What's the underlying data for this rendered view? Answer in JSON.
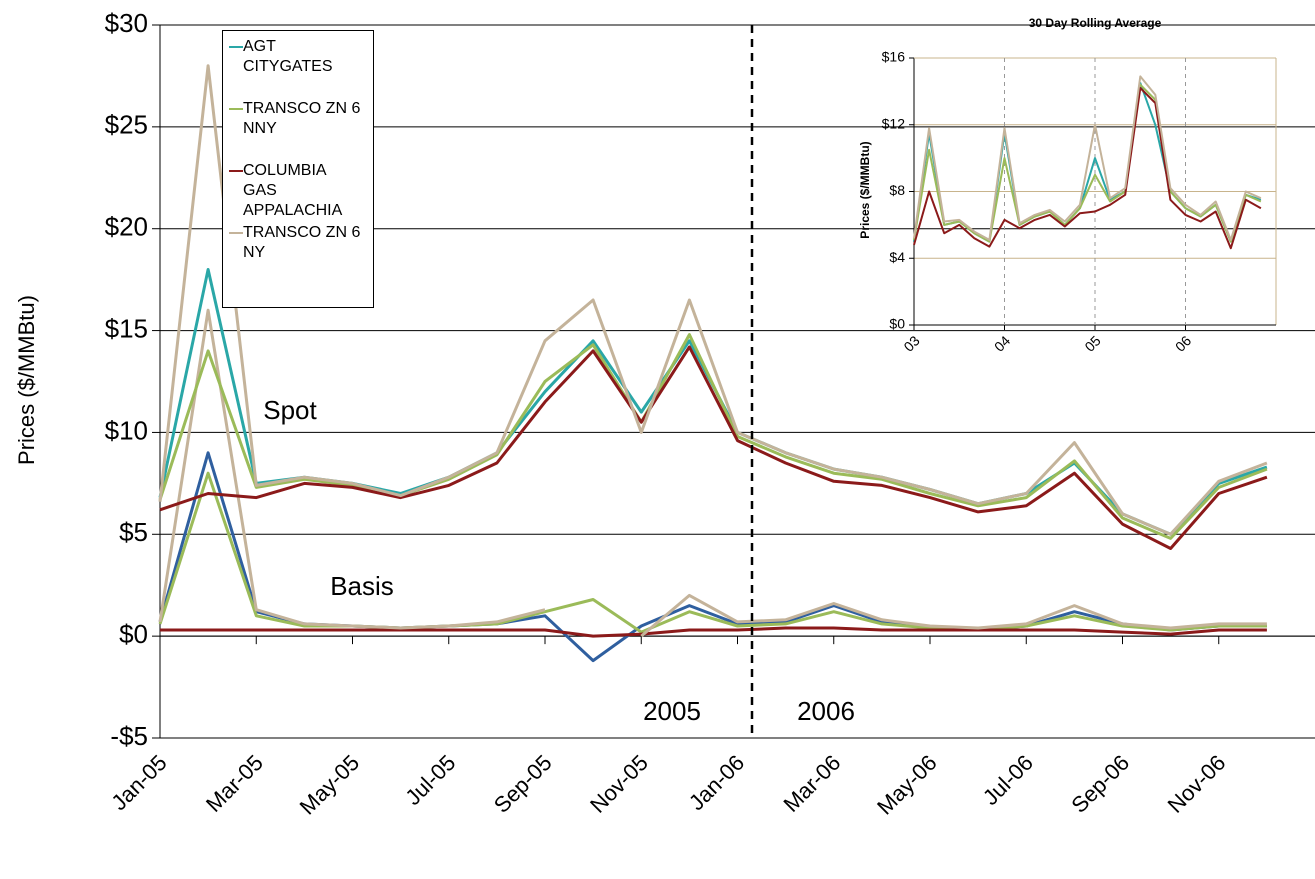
{
  "chart_data": [
    {
      "type": "line",
      "ylabel": "Prices ($/MMBtu)",
      "annotations": [
        "Spot",
        "Basis",
        "2005",
        "2006"
      ],
      "x": [
        "Jan-05",
        null,
        "Mar-05",
        null,
        "May-05",
        null,
        "Jul-05",
        null,
        "Sep-05",
        null,
        "Nov-05",
        null,
        "Jan-06",
        null,
        "Mar-06",
        null,
        "May-06",
        null,
        "Jul-06",
        null,
        "Sep-06",
        null,
        "Nov-06",
        null
      ],
      "ylim": [
        -5,
        30
      ],
      "yticks": [
        {
          "value": -5,
          "label": "-$5"
        },
        {
          "value": 0,
          "label": "$0"
        },
        {
          "value": 5,
          "label": "$5"
        },
        {
          "value": 10,
          "label": "$10"
        },
        {
          "value": 15,
          "label": "$15"
        },
        {
          "value": 20,
          "label": "$20"
        },
        {
          "value": 25,
          "label": "$25"
        },
        {
          "value": 30,
          "label": "$30"
        }
      ],
      "grid": true,
      "legend": "upper-left",
      "series": [
        {
          "name": "AGT CITYGATES",
          "color": "#2aa7a7",
          "values": [
            6.8,
            18,
            7.5,
            7.8,
            7.5,
            7.0,
            7.8,
            9.0,
            12,
            14.5,
            11,
            14.5,
            10,
            9,
            8.2,
            7.8,
            7.2,
            6.5,
            7,
            8.5,
            6,
            5,
            7.5,
            8.3
          ]
        },
        {
          "name": "TRANSCO ZN 6 NNY",
          "color": "#9bbb59",
          "values": [
            6.7,
            14,
            7.3,
            7.7,
            7.4,
            6.9,
            7.7,
            8.9,
            12.5,
            14.3,
            10.5,
            14.8,
            9.8,
            8.8,
            8,
            7.7,
            7,
            6.4,
            6.8,
            8.6,
            5.8,
            4.8,
            7.3,
            8.2
          ]
        },
        {
          "name": "COLUMBIA GAS APPALACHIA",
          "color": "#8b1a1a",
          "values": [
            6.2,
            7.0,
            6.8,
            7.5,
            7.3,
            6.8,
            7.4,
            8.5,
            11.5,
            14,
            10.5,
            14.2,
            9.6,
            8.5,
            7.6,
            7.4,
            6.8,
            6.1,
            6.4,
            8,
            5.5,
            4.3,
            7,
            7.8
          ]
        },
        {
          "name": "TRANSCO ZN 6 NY",
          "color": "#c4b39a",
          "values": [
            6.6,
            28,
            7.4,
            7.8,
            7.5,
            6.9,
            7.8,
            9,
            14.5,
            16.5,
            10,
            16.5,
            10,
            9,
            8.2,
            7.8,
            7.2,
            6.5,
            7,
            9.5,
            6,
            5,
            7.6,
            8.5
          ]
        }
      ],
      "basis_series": [
        {
          "color": "#2f5f9f",
          "values": [
            0.7,
            9,
            1.2,
            0.6,
            0.5,
            0.4,
            0.5,
            0.6,
            1.0,
            -1.2,
            0.5,
            1.5,
            0.6,
            0.7,
            1.5,
            0.7,
            0.4,
            0.3,
            0.5,
            1.2,
            0.6,
            0.3,
            0.5,
            0.5
          ]
        },
        {
          "color": "#9bbb59",
          "values": [
            0.6,
            8,
            1,
            0.5,
            0.5,
            0.4,
            0.5,
            0.6,
            1.2,
            1.8,
            0.2,
            1.2,
            0.5,
            0.6,
            1.2,
            0.6,
            0.4,
            0.3,
            0.5,
            1,
            0.5,
            0.3,
            0.5,
            0.5
          ]
        },
        {
          "color": "#8b1a1a",
          "values": [
            0.3,
            0.3,
            0.3,
            0.3,
            0.3,
            0.3,
            0.3,
            0.3,
            0.3,
            0,
            0.1,
            0.3,
            0.3,
            0.4,
            0.4,
            0.3,
            0.3,
            0.3,
            0.3,
            0.3,
            0.2,
            0.1,
            0.3,
            0.3
          ]
        },
        {
          "color": "#c4b39a",
          "values": [
            0.7,
            16,
            1.3,
            0.6,
            0.5,
            0.4,
            0.5,
            0.7,
            1.3,
            null,
            0,
            2,
            0.7,
            0.8,
            1.6,
            0.8,
            0.5,
            0.4,
            0.6,
            1.5,
            0.6,
            0.4,
            0.6,
            0.6
          ]
        }
      ]
    },
    {
      "type": "line",
      "title": "30 Day Rolling Average",
      "ylabel": "Prices ($/MMBtu)",
      "x": [
        "03",
        null,
        null,
        null,
        null,
        null,
        "04",
        null,
        null,
        null,
        null,
        null,
        "05",
        null,
        null,
        null,
        null,
        null,
        "06",
        null,
        null,
        null,
        null,
        null
      ],
      "ylim": [
        0,
        16
      ],
      "yticks": [
        {
          "value": 0,
          "label": "$0"
        },
        {
          "value": 4,
          "label": "$4"
        },
        {
          "value": 8,
          "label": "$8"
        },
        {
          "value": 12,
          "label": "$12"
        },
        {
          "value": 16,
          "label": "$16"
        }
      ],
      "grid": true,
      "series": [
        {
          "color": "#2aa7a7",
          "values": [
            5,
            11.5,
            6,
            6.2,
            5.5,
            5,
            11.5,
            6,
            6.5,
            6.8,
            6,
            7,
            10,
            7.5,
            8,
            14.5,
            12,
            8,
            7,
            6.5,
            7.2,
            5,
            7.8,
            7.5
          ]
        },
        {
          "color": "#9bbb59",
          "values": [
            5.1,
            10.5,
            6,
            6.2,
            5.5,
            5,
            10,
            6,
            6.5,
            6.8,
            6,
            7,
            9,
            7.4,
            8,
            14.4,
            13.5,
            8,
            7,
            6.5,
            7.2,
            5,
            7.8,
            7.4
          ]
        },
        {
          "color": "#8b1a1a",
          "values": [
            4.8,
            8,
            5.5,
            6,
            5.2,
            4.7,
            6.3,
            5.8,
            6.3,
            6.6,
            5.9,
            6.7,
            6.8,
            7.2,
            7.8,
            14.2,
            13.3,
            7.5,
            6.6,
            6.2,
            6.8,
            4.6,
            7.5,
            7
          ]
        },
        {
          "color": "#c4b39a",
          "values": [
            5.2,
            11.8,
            6.2,
            6.3,
            5.6,
            5.1,
            11.8,
            6.1,
            6.6,
            6.9,
            6.2,
            7.2,
            12,
            7.6,
            8.2,
            14.9,
            13.8,
            8.2,
            7.2,
            6.6,
            7.4,
            5.1,
            8,
            7.6
          ]
        }
      ]
    }
  ]
}
